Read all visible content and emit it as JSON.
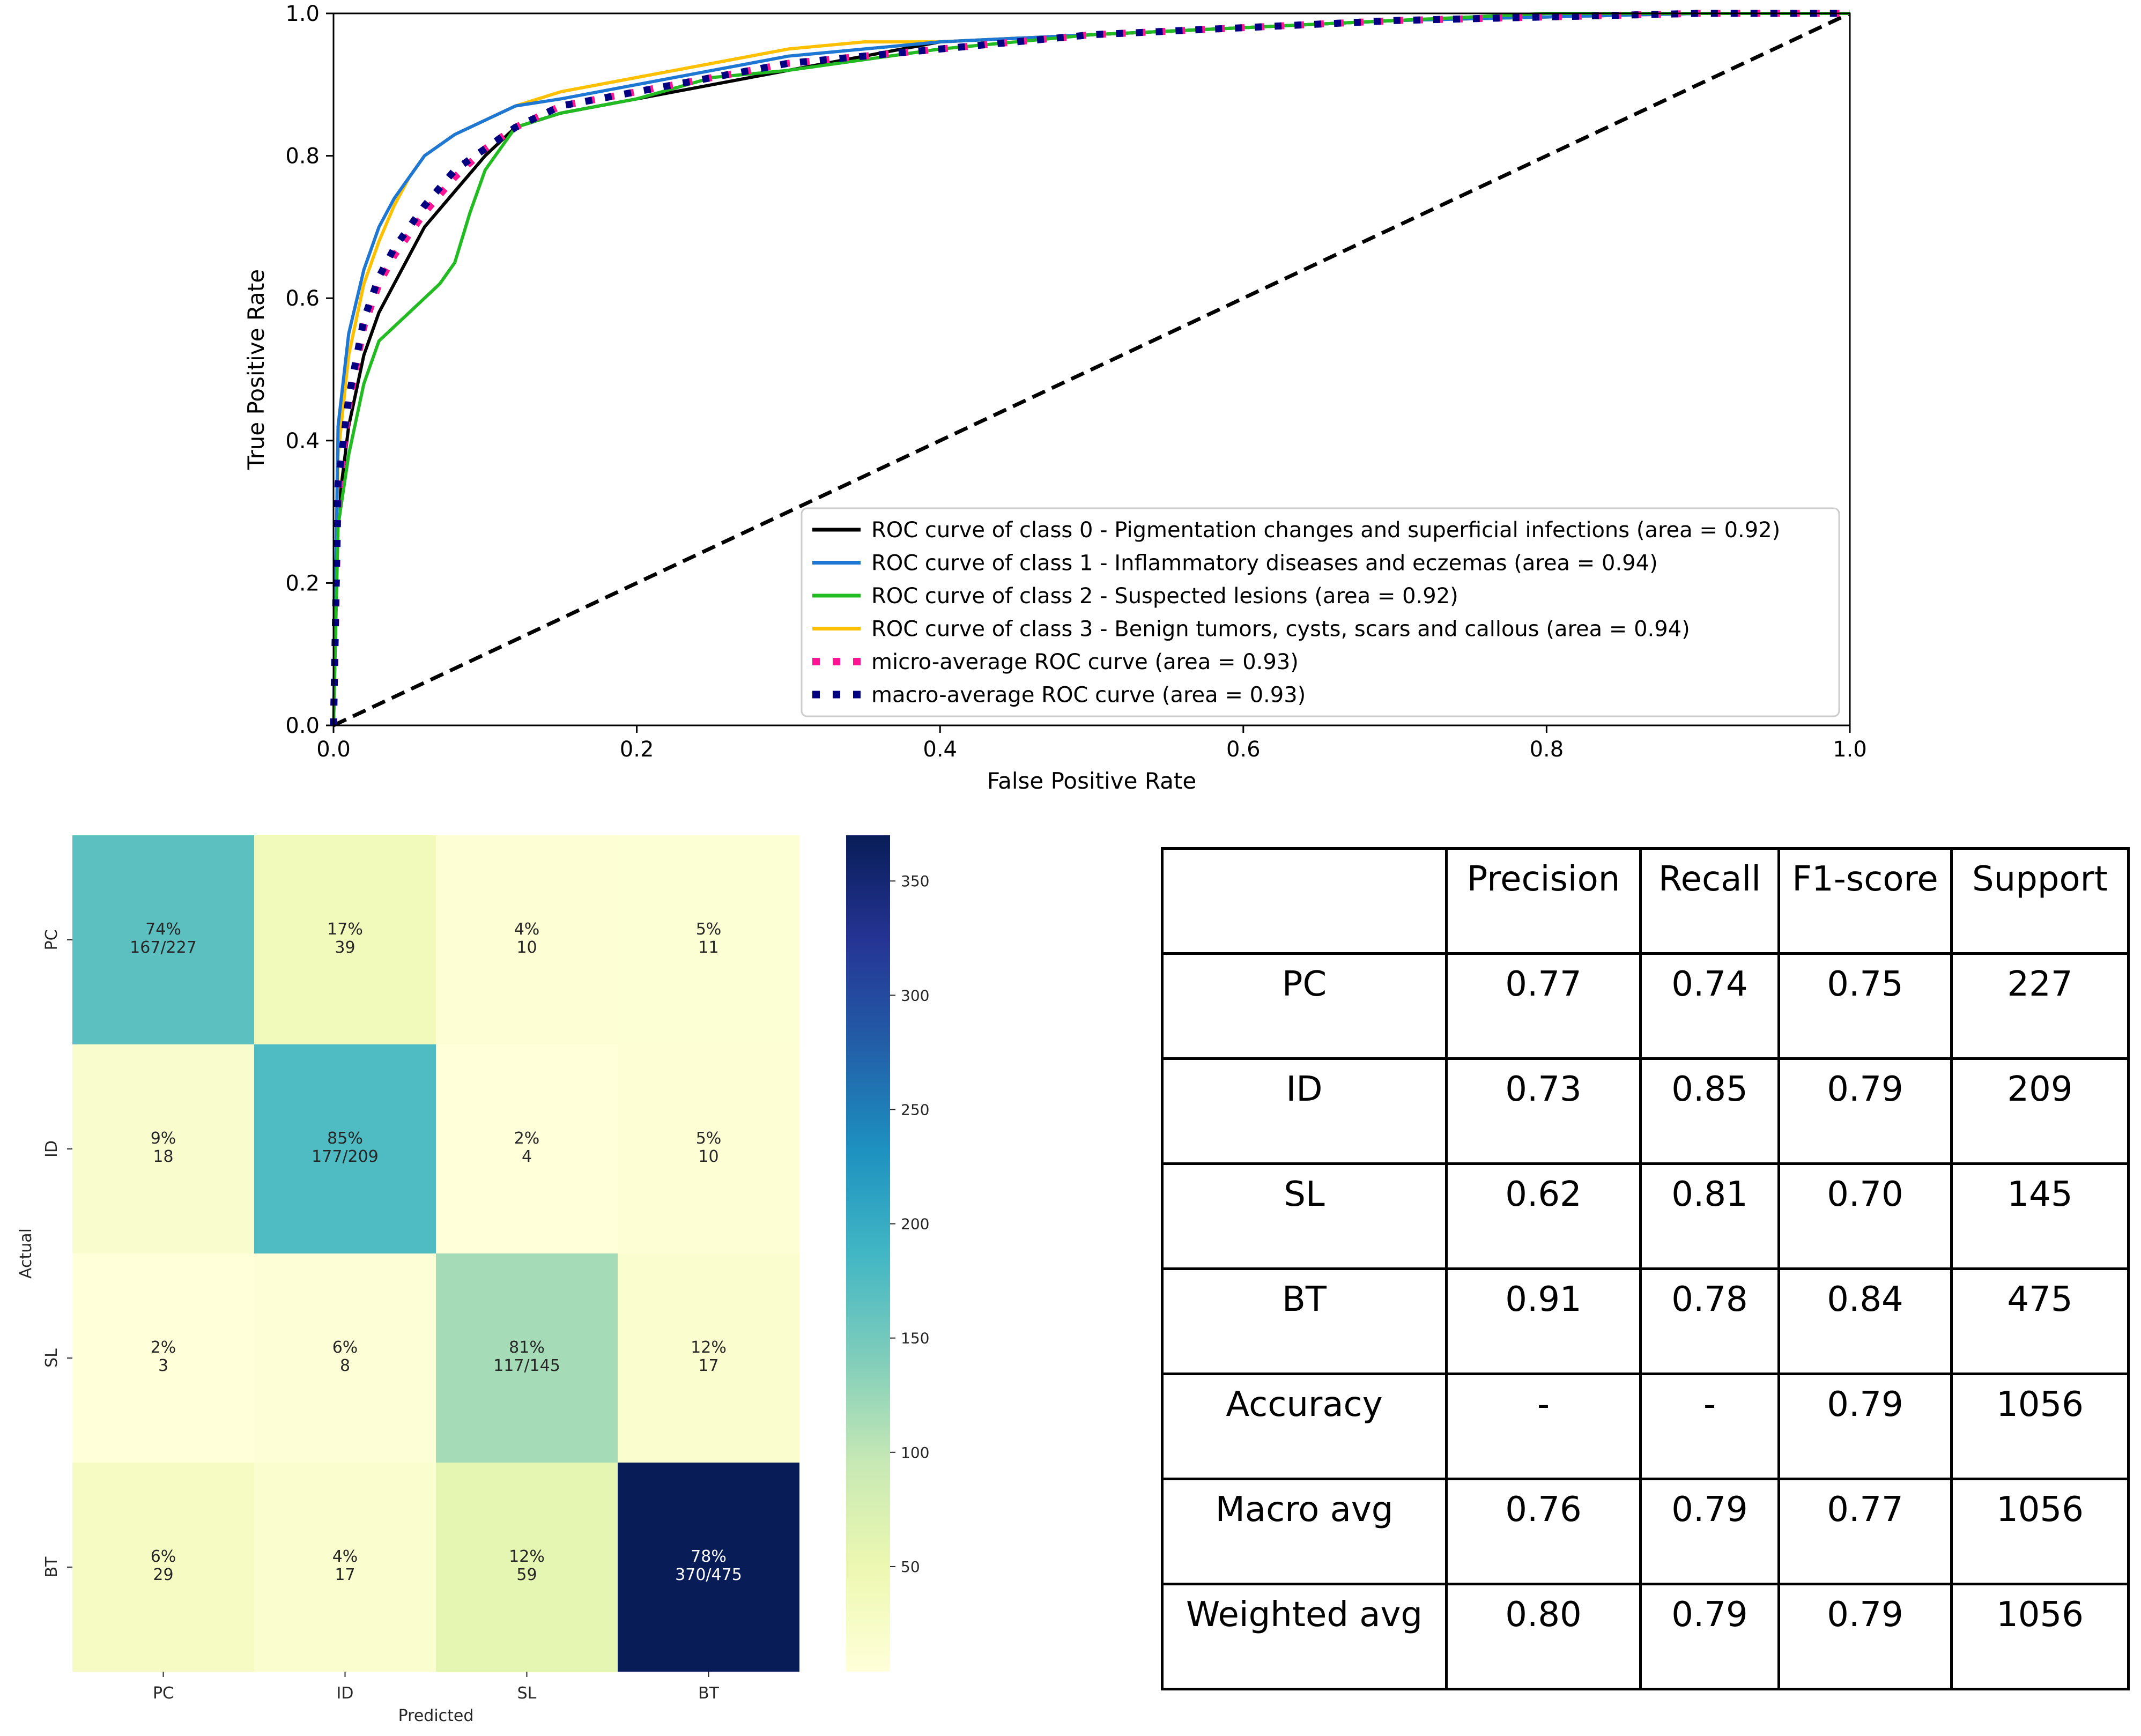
{
  "chart_data": [
    {
      "type": "line",
      "title": "",
      "xlabel": "False Positive Rate",
      "ylabel": "True Positive Rate",
      "xlim": [
        0.0,
        1.0
      ],
      "ylim": [
        0.0,
        1.0
      ],
      "xticks": [
        "0.0",
        "0.2",
        "0.4",
        "0.6",
        "0.8",
        "1.0"
      ],
      "yticks": [
        "0.0",
        "0.2",
        "0.4",
        "0.6",
        "0.8",
        "1.0"
      ],
      "legend_position": "bottom-right",
      "series": [
        {
          "name": "ROC curve of class 0 - Pigmentation changes and superficial infections (area = 0.92)",
          "color": "#000000",
          "style": "solid",
          "x": [
            0,
            0.003,
            0.01,
            0.02,
            0.03,
            0.04,
            0.05,
            0.06,
            0.08,
            0.1,
            0.12,
            0.15,
            0.2,
            0.25,
            0.3,
            0.35,
            0.4,
            0.5,
            0.6,
            0.7,
            0.8,
            0.9,
            1.0
          ],
          "y": [
            0,
            0.3,
            0.42,
            0.52,
            0.58,
            0.62,
            0.66,
            0.7,
            0.75,
            0.8,
            0.84,
            0.86,
            0.88,
            0.9,
            0.92,
            0.94,
            0.96,
            0.97,
            0.98,
            0.99,
            0.995,
            1.0,
            1.0
          ]
        },
        {
          "name": "ROC curve of class 1 - Inflammatory diseases and eczemas (area = 0.94)",
          "color": "#1f77d4",
          "style": "solid",
          "x": [
            0,
            0.003,
            0.01,
            0.02,
            0.03,
            0.04,
            0.05,
            0.06,
            0.08,
            0.1,
            0.12,
            0.15,
            0.2,
            0.25,
            0.3,
            0.35,
            0.4,
            0.5,
            0.6,
            0.7,
            0.8,
            0.9,
            1.0
          ],
          "y": [
            0,
            0.42,
            0.55,
            0.64,
            0.7,
            0.74,
            0.77,
            0.8,
            0.83,
            0.85,
            0.87,
            0.88,
            0.9,
            0.92,
            0.94,
            0.95,
            0.96,
            0.97,
            0.98,
            0.99,
            0.995,
            1.0,
            1.0
          ]
        },
        {
          "name": "ROC curve of class 2 - Suspected lesions (area = 0.92)",
          "color": "#22bb22",
          "style": "solid",
          "x": [
            0,
            0.003,
            0.01,
            0.02,
            0.03,
            0.04,
            0.05,
            0.06,
            0.07,
            0.08,
            0.09,
            0.1,
            0.12,
            0.15,
            0.2,
            0.25,
            0.3,
            0.4,
            0.5,
            0.6,
            0.7,
            0.8,
            1.0
          ],
          "y": [
            0,
            0.28,
            0.38,
            0.48,
            0.54,
            0.56,
            0.58,
            0.6,
            0.62,
            0.65,
            0.72,
            0.78,
            0.84,
            0.86,
            0.88,
            0.91,
            0.92,
            0.95,
            0.97,
            0.98,
            0.99,
            1.0,
            1.0
          ]
        },
        {
          "name": "ROC curve of class 3 - Benign tumors, cysts, scars and callous (area = 0.94)",
          "color": "#ffc000",
          "style": "solid",
          "x": [
            0,
            0.003,
            0.01,
            0.02,
            0.03,
            0.04,
            0.05,
            0.06,
            0.08,
            0.1,
            0.12,
            0.15,
            0.2,
            0.25,
            0.3,
            0.35,
            0.4,
            0.5,
            0.6,
            0.7,
            0.8,
            0.9,
            1.0
          ],
          "y": [
            0,
            0.38,
            0.52,
            0.62,
            0.68,
            0.73,
            0.77,
            0.8,
            0.83,
            0.85,
            0.87,
            0.89,
            0.91,
            0.93,
            0.95,
            0.96,
            0.96,
            0.97,
            0.98,
            0.99,
            0.995,
            1.0,
            1.0
          ]
        },
        {
          "name": "micro-average ROC curve (area = 0.93)",
          "color": "#ff1493",
          "style": "dotted",
          "x": [
            0,
            0.003,
            0.01,
            0.02,
            0.03,
            0.04,
            0.05,
            0.06,
            0.08,
            0.1,
            0.12,
            0.15,
            0.2,
            0.25,
            0.3,
            0.35,
            0.4,
            0.5,
            0.6,
            0.7,
            0.8,
            0.9,
            1.0
          ],
          "y": [
            0,
            0.32,
            0.45,
            0.56,
            0.62,
            0.66,
            0.69,
            0.72,
            0.77,
            0.81,
            0.84,
            0.87,
            0.89,
            0.91,
            0.93,
            0.94,
            0.95,
            0.97,
            0.98,
            0.99,
            0.995,
            1.0,
            1.0
          ]
        },
        {
          "name": "macro-average ROC curve (area = 0.93)",
          "color": "#000080",
          "style": "dotted",
          "x": [
            0,
            0.003,
            0.01,
            0.02,
            0.03,
            0.04,
            0.05,
            0.06,
            0.08,
            0.1,
            0.12,
            0.15,
            0.2,
            0.25,
            0.3,
            0.35,
            0.4,
            0.5,
            0.6,
            0.7,
            0.8,
            0.9,
            1.0
          ],
          "y": [
            0,
            0.34,
            0.46,
            0.57,
            0.63,
            0.67,
            0.7,
            0.73,
            0.78,
            0.81,
            0.84,
            0.87,
            0.89,
            0.91,
            0.93,
            0.94,
            0.95,
            0.97,
            0.98,
            0.99,
            0.995,
            1.0,
            1.0
          ]
        },
        {
          "name": "chance",
          "color": "#000000",
          "style": "dashed",
          "legend": false,
          "x": [
            0,
            1
          ],
          "y": [
            0,
            1
          ]
        }
      ]
    },
    {
      "type": "heatmap",
      "xlabel": "Predicted",
      "ylabel": "Actual",
      "categories": [
        "PC",
        "ID",
        "SL",
        "BT"
      ],
      "counts": [
        [
          167,
          39,
          10,
          11
        ],
        [
          18,
          177,
          4,
          10
        ],
        [
          3,
          8,
          117,
          17
        ],
        [
          29,
          17,
          59,
          370
        ]
      ],
      "percents": [
        [
          "74%",
          "17%",
          "4%",
          "5%"
        ],
        [
          "9%",
          "85%",
          "2%",
          "5%"
        ],
        [
          "2%",
          "6%",
          "81%",
          "12%"
        ],
        [
          "6%",
          "4%",
          "12%",
          "78%"
        ]
      ],
      "labels": [
        [
          "167/227",
          "39",
          "10",
          "11"
        ],
        [
          "18",
          "177/209",
          "4",
          "10"
        ],
        [
          "3",
          "8",
          "117/145",
          "17"
        ],
        [
          "29",
          "17",
          "59",
          "370/475"
        ]
      ],
      "colorbar": {
        "min": 4,
        "max": 370,
        "ticks": [
          50,
          100,
          150,
          200,
          250,
          300,
          350
        ],
        "cmap": "YlGnBu"
      }
    },
    {
      "type": "table",
      "columns": [
        "",
        "Precision",
        "Recall",
        "F1-score",
        "Support"
      ],
      "rows": [
        [
          "PC",
          "0.77",
          "0.74",
          "0.75",
          "227"
        ],
        [
          "ID",
          "0.73",
          "0.85",
          "0.79",
          "209"
        ],
        [
          "SL",
          "0.62",
          "0.81",
          "0.70",
          "145"
        ],
        [
          "BT",
          "0.91",
          "0.78",
          "0.84",
          "475"
        ],
        [
          "Accuracy",
          "-",
          "-",
          "0.79",
          "1056"
        ],
        [
          "Macro avg",
          "0.76",
          "0.79",
          "0.77",
          "1056"
        ],
        [
          "Weighted avg",
          "0.80",
          "0.79",
          "0.79",
          "1056"
        ]
      ]
    }
  ]
}
